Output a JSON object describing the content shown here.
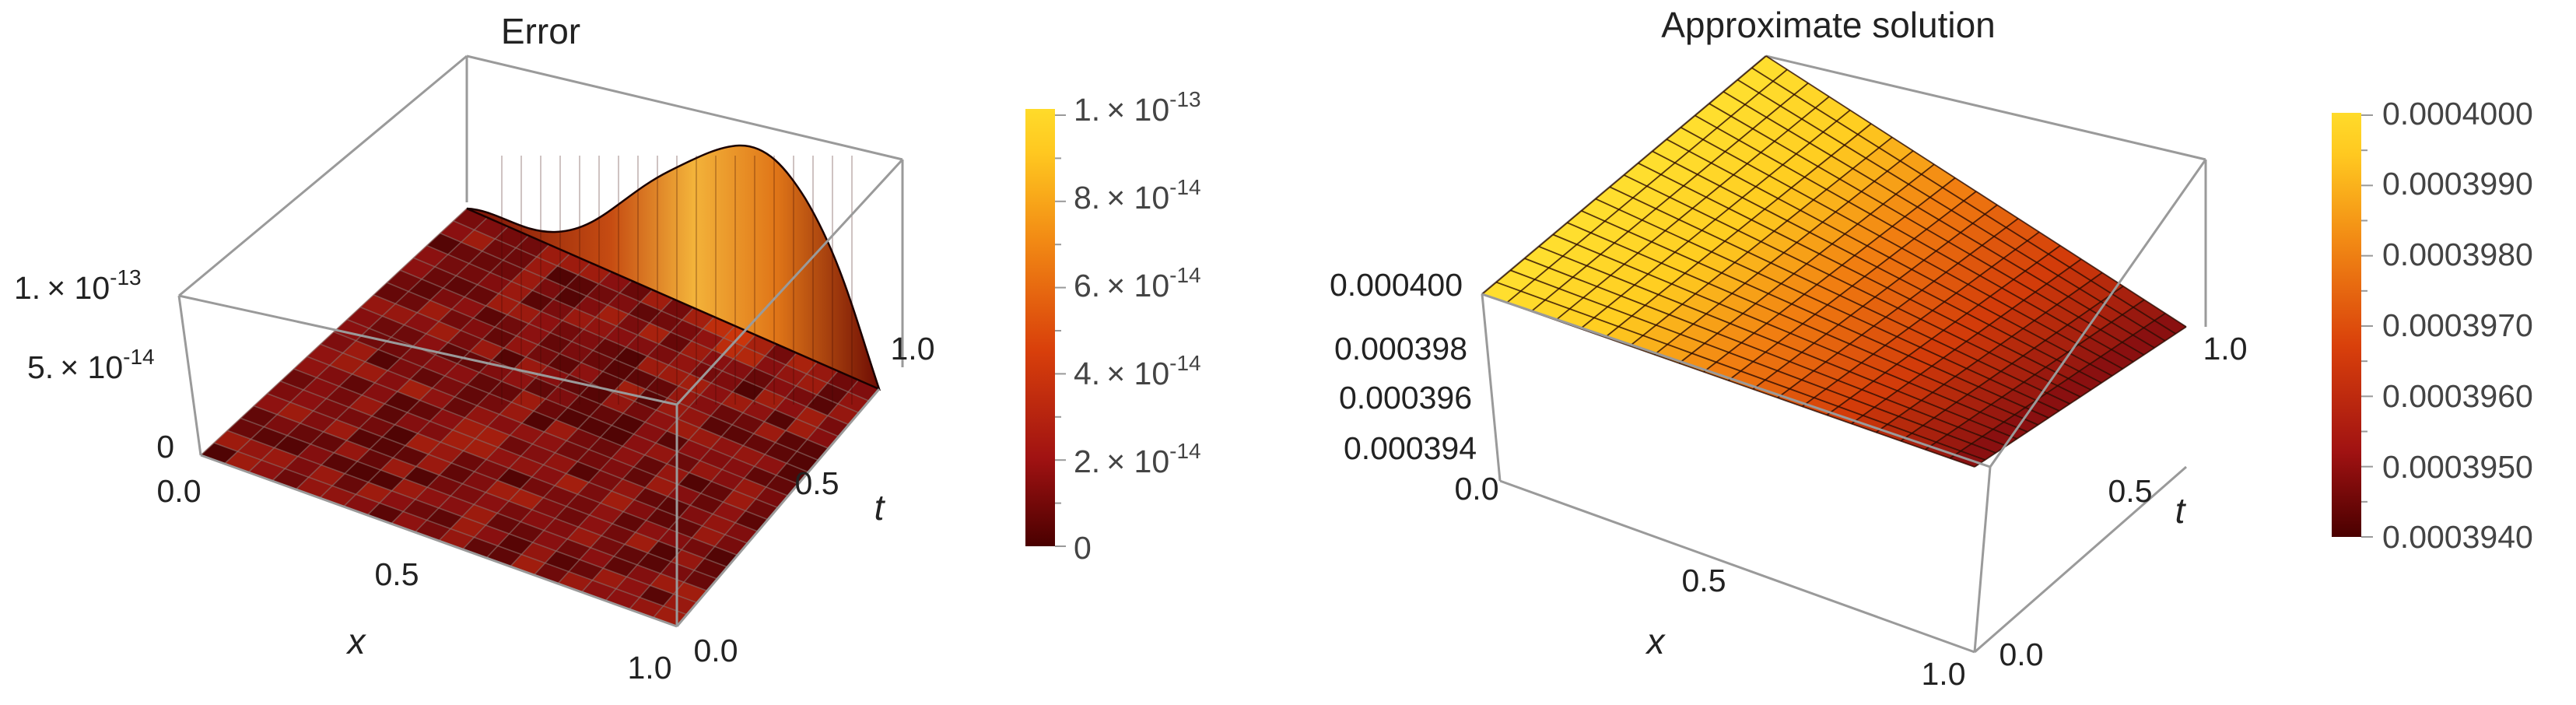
{
  "chart_data": [
    {
      "type": "surface3d",
      "title": "Error",
      "xlabel": "x",
      "ylabel": "t",
      "x_ticks": [
        "0.0",
        "0.5",
        "1.0"
      ],
      "t_ticks": [
        "0.0",
        "0.5",
        "1.0"
      ],
      "z_ticks": [
        {
          "mant": "1.",
          "exp": "-13"
        },
        {
          "mant": "5.",
          "exp": "-14"
        },
        {
          "mant": "0",
          "exp": ""
        }
      ],
      "colorbar_ticks": [
        {
          "mant": "1.",
          "exp": "-13"
        },
        {
          "mant": "8.",
          "exp": "-14"
        },
        {
          "mant": "6.",
          "exp": "-14"
        },
        {
          "mant": "4.",
          "exp": "-14"
        },
        {
          "mant": "2.",
          "exp": "-14"
        },
        {
          "mant": "0",
          "exp": ""
        }
      ],
      "colorbar_values": [
        1e-13,
        8e-14,
        6e-14,
        4e-14,
        2e-14,
        0
      ],
      "zlim": [
        0,
        1.1e-13
      ],
      "x_range": [
        0,
        1
      ],
      "t_range": [
        0,
        1
      ],
      "description_of_surface": "noisy near zero; rises to a peak of ~1.0e-13 along the edge t = 1 around x = 0.65",
      "colormap": [
        "#3d0000",
        "#8a1010",
        "#d23a0a",
        "#f07a10",
        "#ffcc20",
        "#ffe030"
      ]
    },
    {
      "type": "surface3d",
      "title": "Approximate  solution",
      "xlabel": "x",
      "ylabel": "t",
      "x_ticks": [
        "0.0",
        "0.5",
        "1.0"
      ],
      "t_ticks": [
        "0.0",
        "0.5",
        "1.0"
      ],
      "z_ticks": [
        "0.000400",
        "0.000398",
        "0.000396",
        "0.000394"
      ],
      "colorbar_ticks": [
        "0.0004000",
        "0.0003990",
        "0.0003980",
        "0.0003970",
        "0.0003960",
        "0.0003950",
        "0.0003940"
      ],
      "colorbar_values": [
        0.0004,
        0.000399,
        0.000398,
        0.000397,
        0.000396,
        0.000395,
        0.000394
      ],
      "zlim": [
        0.000393,
        0.0004
      ],
      "x_range": [
        0,
        1
      ],
      "t_range": [
        0,
        1
      ],
      "description_of_surface": "plane decreasing from 0.000400 at x = 0 to about 0.000394 at x = 1, nearly constant in t",
      "colormap": [
        "#3d0000",
        "#8a1010",
        "#d23a0a",
        "#f07a10",
        "#ffcc20",
        "#ffe030"
      ]
    }
  ]
}
